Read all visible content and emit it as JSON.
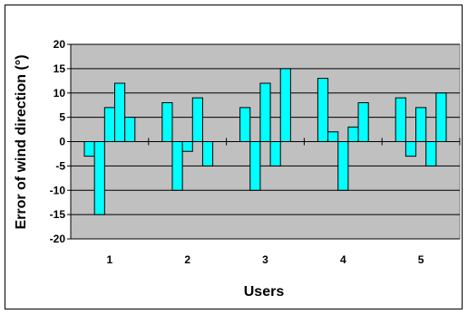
{
  "chart_data": {
    "type": "bar",
    "title": "",
    "xlabel": "Users",
    "ylabel": "Error of wind direction (°)",
    "ylim": [
      -20,
      20
    ],
    "yticks": [
      -20,
      -15,
      -10,
      -5,
      0,
      5,
      10,
      15,
      20
    ],
    "categories": [
      "1",
      "2",
      "3",
      "4",
      "5"
    ],
    "series": [
      {
        "values": [
          -3,
          8,
          7,
          13,
          9
        ]
      },
      {
        "values": [
          -15,
          -10,
          -10,
          2,
          -3
        ]
      },
      {
        "values": [
          7,
          -2,
          12,
          -10,
          7
        ]
      },
      {
        "values": [
          12,
          9,
          -5,
          3,
          -5
        ]
      },
      {
        "values": [
          5,
          -5,
          15,
          8,
          10
        ]
      }
    ],
    "grid": true,
    "legend": "none",
    "colors": {
      "bar": "#00FFFF",
      "plot_bg": "#C0C0C0",
      "gridline": "#000000"
    }
  }
}
